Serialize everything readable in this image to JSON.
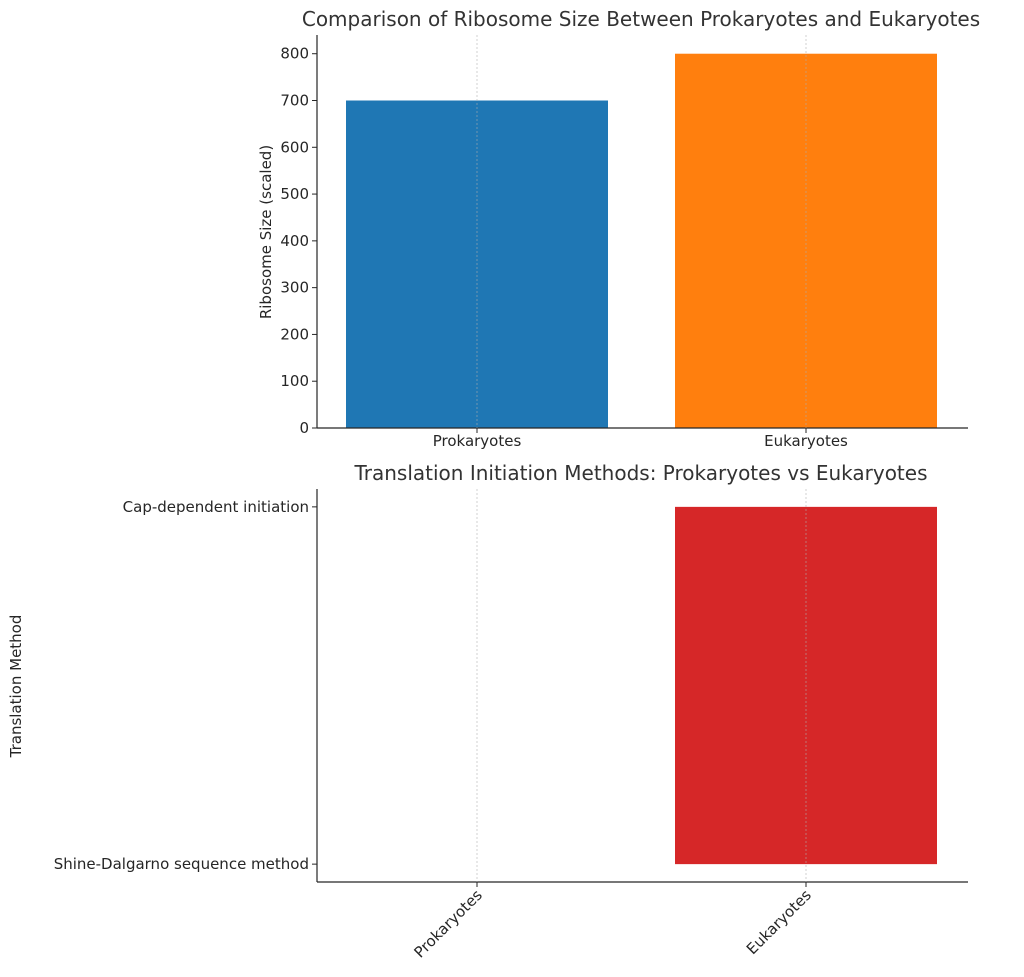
{
  "chart_data": [
    {
      "type": "bar",
      "title": "Comparison of Ribosome Size Between Prokaryotes and Eukaryotes",
      "xlabel": "",
      "ylabel": "Ribosome Size (scaled)",
      "categories": [
        "Prokaryotes",
        "Eukaryotes"
      ],
      "values": [
        700,
        800
      ],
      "colors": [
        "#1f77b4",
        "#ff7f0e"
      ],
      "ylim": [
        0,
        840
      ],
      "yticks": [
        0,
        100,
        200,
        300,
        400,
        500,
        600,
        700,
        800
      ],
      "grid": "x"
    },
    {
      "type": "bar",
      "title": "Translation Initiation Methods: Prokaryotes vs Eukaryotes",
      "xlabel": "",
      "ylabel": "Translation Method",
      "categories": [
        "Prokaryotes",
        "Eukaryotes"
      ],
      "values": [
        0,
        1
      ],
      "colors": [
        "#d62728",
        "#d62728"
      ],
      "ylim": [
        -0.05,
        1.05
      ],
      "yticks": [
        0,
        1
      ],
      "ytick_labels": [
        "Shine-Dalgarno sequence method",
        "Cap-dependent initiation"
      ],
      "grid": "x",
      "xtick_rotation": 45
    }
  ]
}
